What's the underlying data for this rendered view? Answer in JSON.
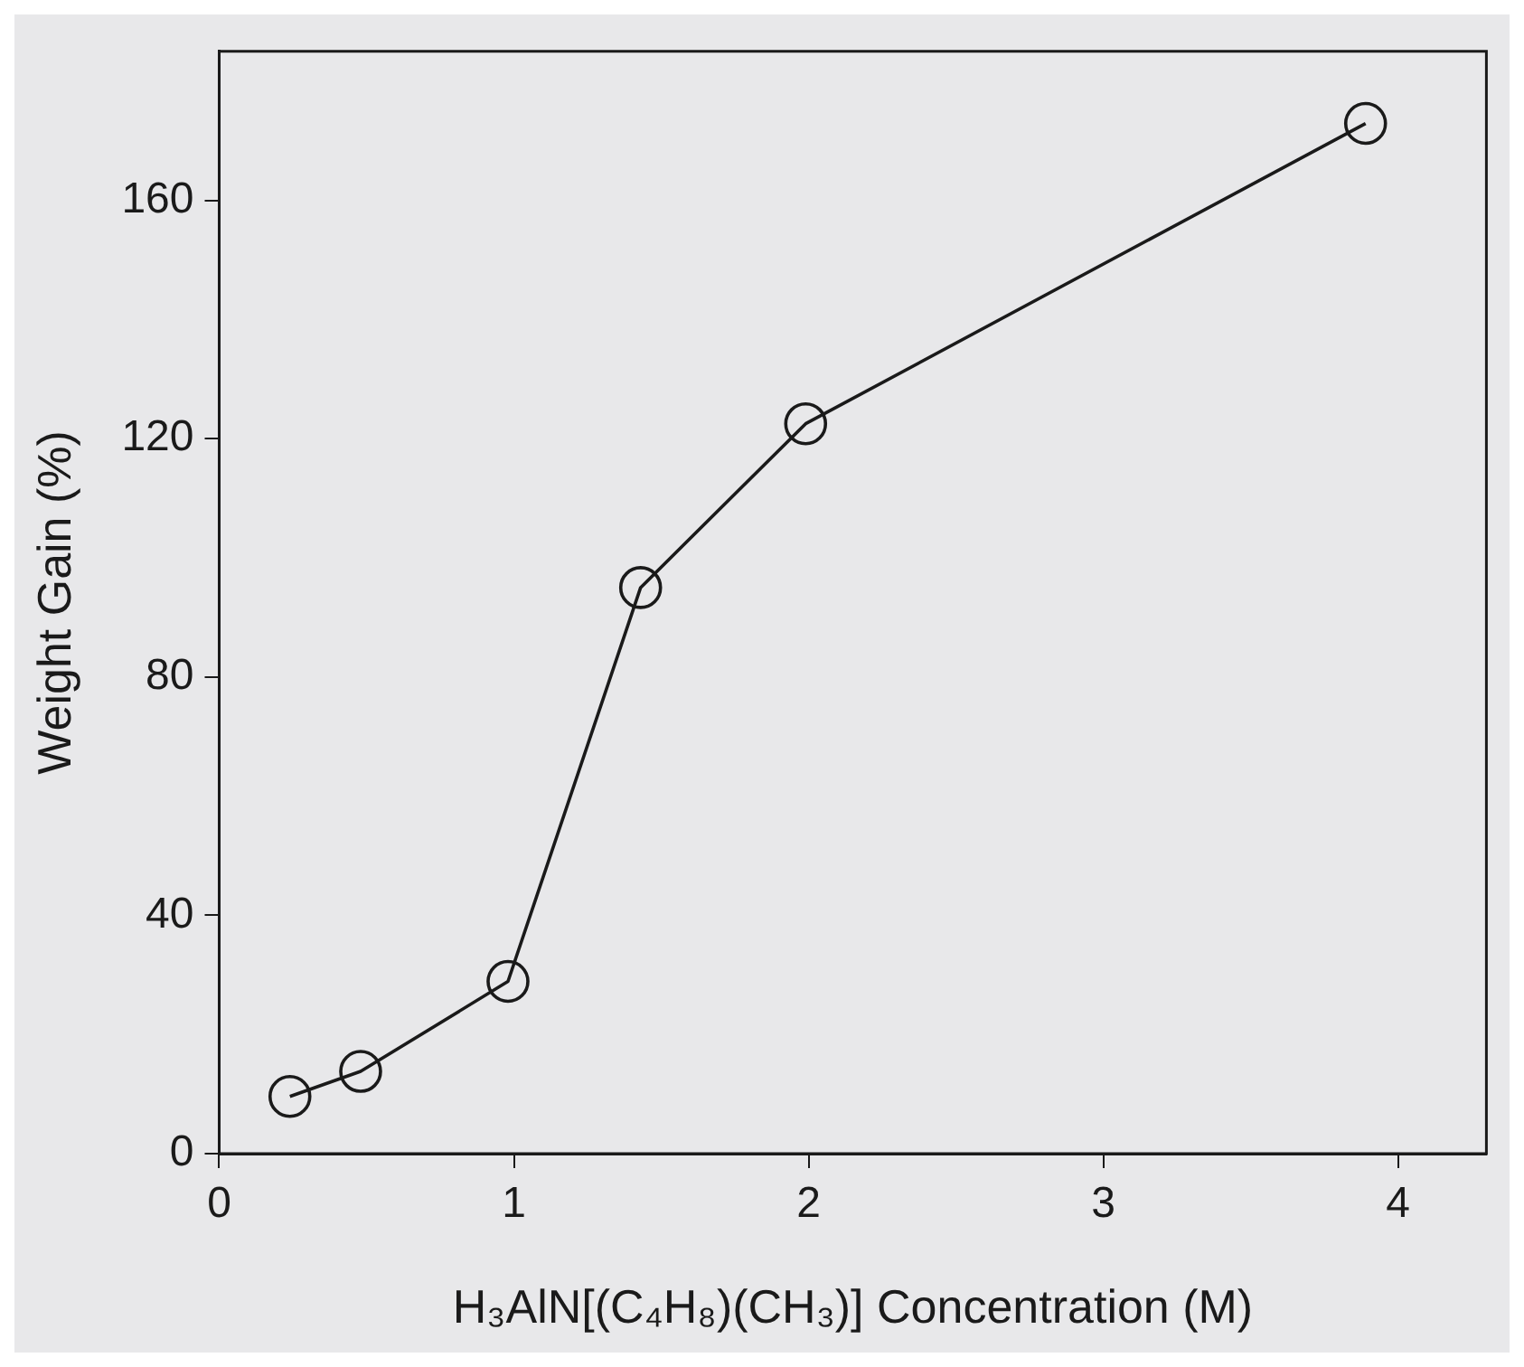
{
  "chart_data": {
    "type": "line",
    "xlabel": "H₃AlN[(C₄H₈)(CH₃)] Concentration (M)",
    "ylabel": "Weight Gain (%)",
    "series": [
      {
        "x": [
          0.24,
          0.48,
          0.98,
          1.43,
          1.99,
          3.89
        ],
        "values": [
          9.6,
          13.8,
          28.9,
          95,
          122.5,
          172.9
        ],
        "color": "#1a1a1a"
      }
    ],
    "xlim": [
      0,
      4.3
    ],
    "xticks": [
      0,
      1,
      2,
      3,
      4
    ],
    "ylim": [
      0,
      185
    ],
    "yticks": [
      0,
      40,
      80,
      120,
      160
    ],
    "grid": false,
    "legend": false,
    "marker": "circle",
    "line_style": "solid"
  }
}
